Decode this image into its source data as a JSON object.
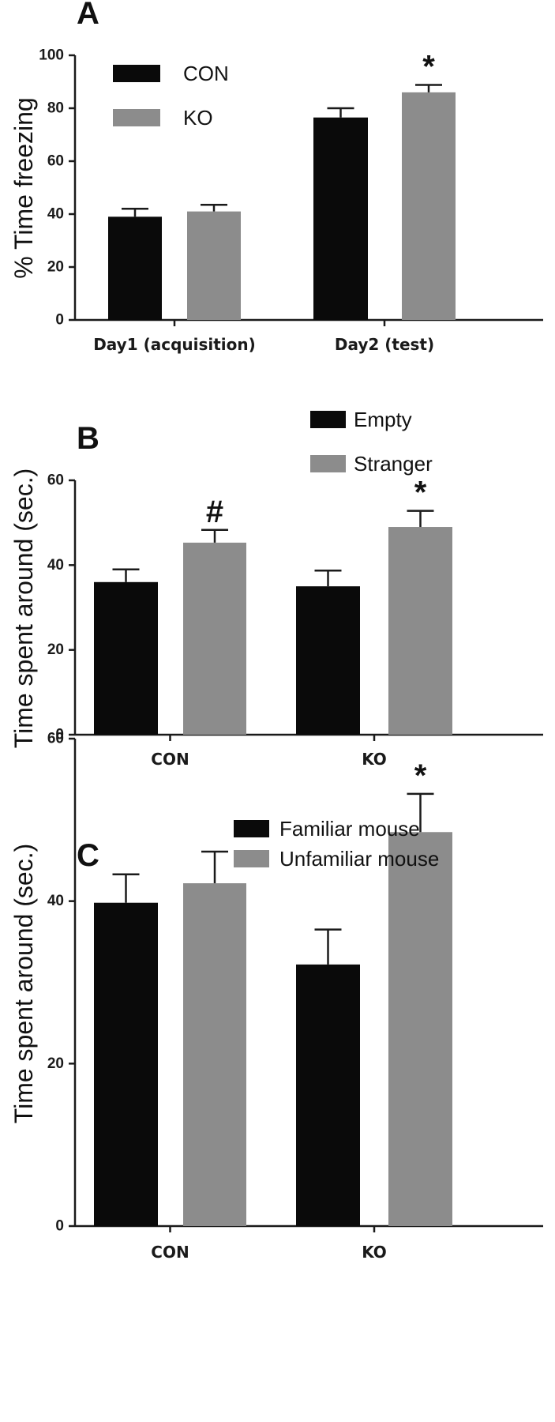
{
  "colors": {
    "series_dark": "#0a0a0a",
    "series_light": "#8c8c8c",
    "axis": "#1a1a1a"
  },
  "chart_data": [
    {
      "panel": "A",
      "type": "bar",
      "ylabel": "% Time freezing",
      "ylim": [
        0,
        100
      ],
      "yticks": [
        0,
        20,
        40,
        60,
        80,
        100
      ],
      "categories": [
        "Day1 (acquisition)",
        "Day2 (test)"
      ],
      "series": [
        {
          "name": "CON",
          "values": [
            39,
            76.5
          ],
          "errors": [
            3,
            3.5
          ]
        },
        {
          "name": "KO",
          "values": [
            41,
            86
          ],
          "errors": [
            2.5,
            2.8
          ]
        }
      ],
      "annotations": [
        {
          "text": "*",
          "category": 1,
          "series": 1
        }
      ],
      "legend": "top-left"
    },
    {
      "panel": "B",
      "type": "bar",
      "ylabel": "Time spent around (sec.)",
      "ylim": [
        0,
        60
      ],
      "yticks": [
        0,
        20,
        40,
        60
      ],
      "categories": [
        "CON",
        "KO"
      ],
      "series": [
        {
          "name": "Empty",
          "values": [
            36,
            35
          ],
          "errors": [
            3,
            3.7
          ]
        },
        {
          "name": "Stranger",
          "values": [
            45.3,
            49
          ],
          "errors": [
            3,
            3.8
          ]
        }
      ],
      "annotations": [
        {
          "text": "#",
          "category": 0,
          "series": 1
        },
        {
          "text": "*",
          "category": 1,
          "series": 1
        }
      ],
      "legend": "top-right"
    },
    {
      "panel": "C",
      "type": "bar",
      "ylabel": "Time spent around (sec.)",
      "ylim": [
        0,
        60
      ],
      "yticks": [
        0,
        20,
        40,
        60
      ],
      "categories": [
        "CON",
        "KO"
      ],
      "series": [
        {
          "name": "Familiar mouse",
          "values": [
            39.8,
            32.2
          ],
          "errors": [
            3.5,
            4.3
          ]
        },
        {
          "name": "Unfamiliar mouse",
          "values": [
            42.2,
            48.5
          ],
          "errors": [
            3.9,
            4.7
          ]
        }
      ],
      "annotations": [
        {
          "text": "*",
          "category": 1,
          "series": 1
        }
      ],
      "legend": "top"
    }
  ]
}
